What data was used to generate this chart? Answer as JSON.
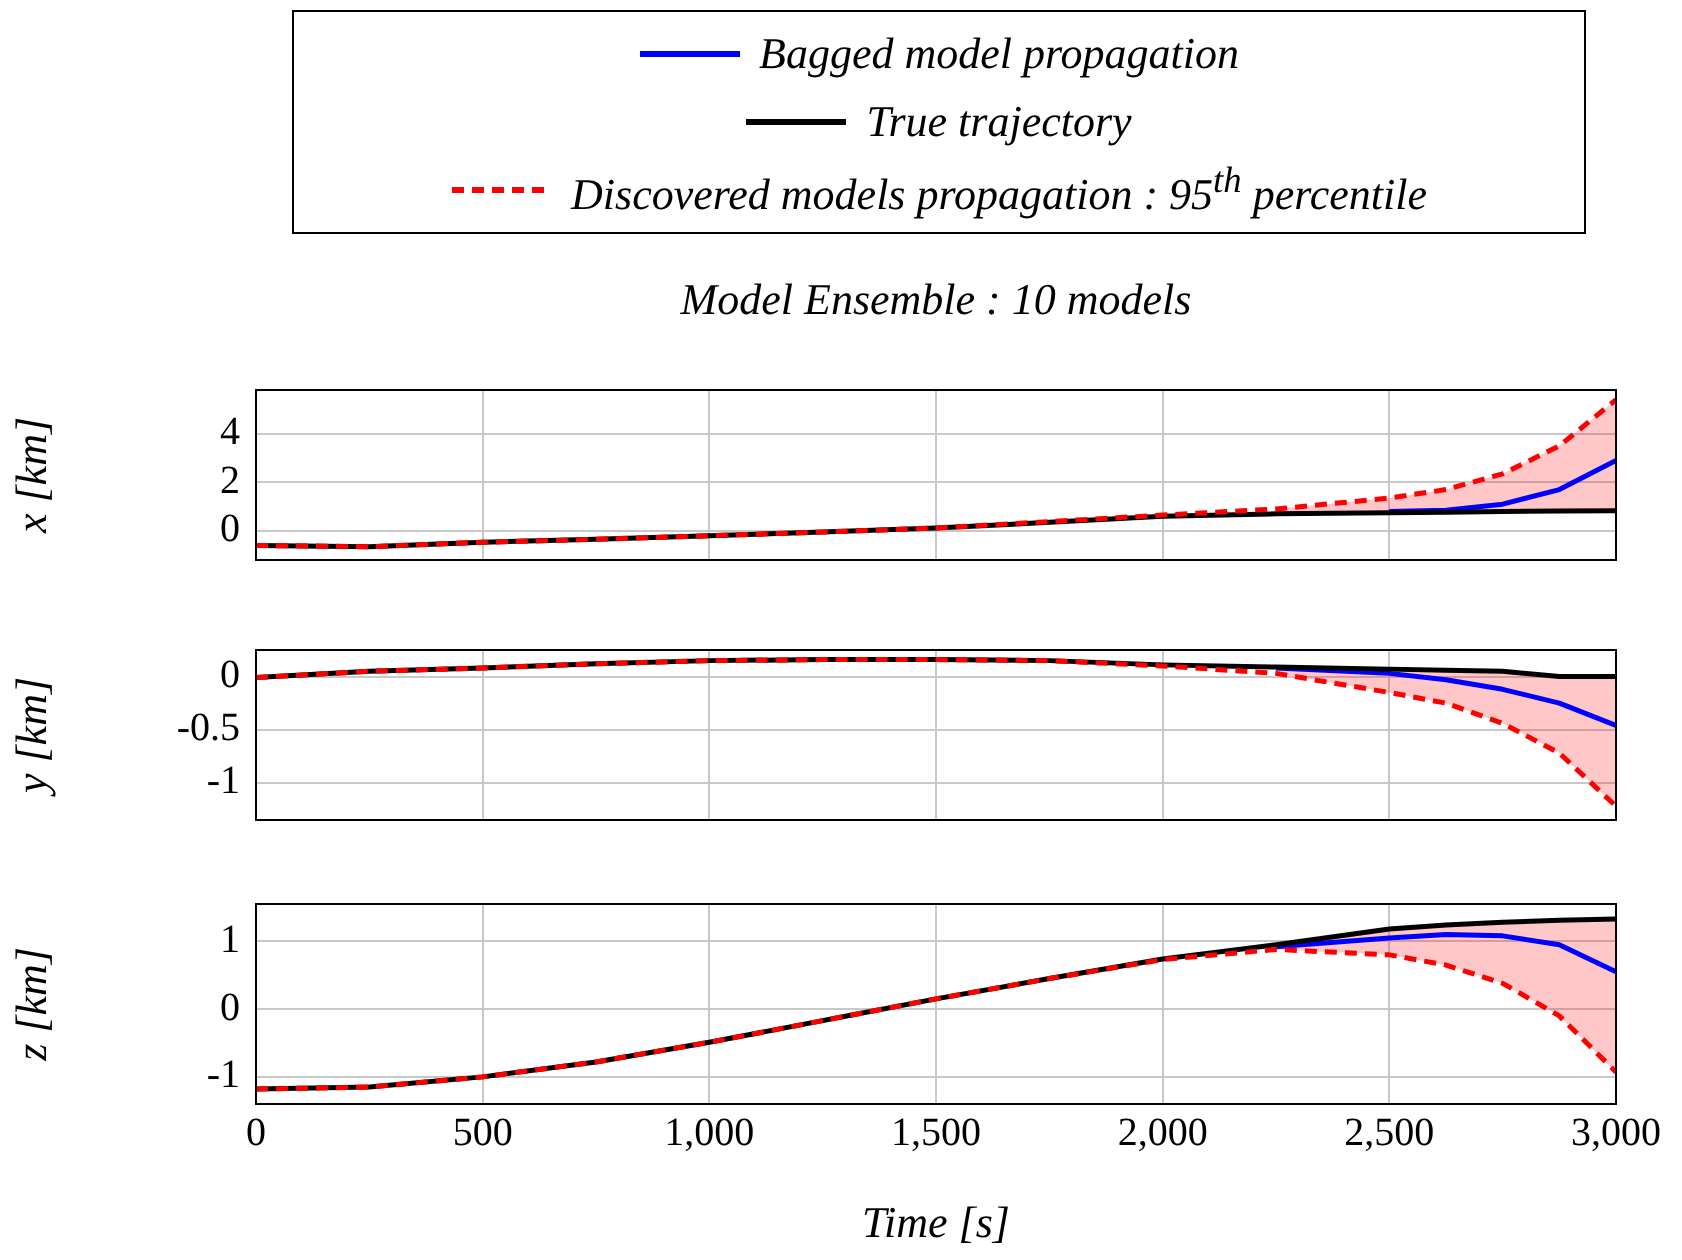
{
  "chart_data": [
    {
      "type": "line",
      "title": "Model Ensemble : 10 models",
      "ylabel": "x [km]",
      "x": [
        0,
        250,
        500,
        750,
        1000,
        1250,
        1500,
        1750,
        2000,
        2250,
        2500,
        2625,
        2750,
        2875,
        3000
      ],
      "series": [
        {
          "name": "Bagged model propagation",
          "color": "#0000ff",
          "line_style": "solid",
          "values": [
            null,
            null,
            null,
            null,
            null,
            null,
            null,
            null,
            null,
            null,
            0.8,
            0.85,
            1.1,
            1.7,
            2.9
          ]
        },
        {
          "name": "True trajectory",
          "color": "#000000",
          "line_style": "solid",
          "values": [
            -0.6,
            -0.65,
            -0.47,
            -0.35,
            -0.2,
            -0.05,
            0.12,
            0.35,
            0.6,
            0.7,
            0.75,
            0.77,
            0.8,
            0.82,
            0.83
          ]
        },
        {
          "name": "Discovered models propagation : 95$^{th}$ percentile",
          "color": "#ff0000",
          "line_style": "dashed",
          "values": [
            -0.6,
            -0.65,
            -0.47,
            -0.35,
            -0.2,
            -0.05,
            0.12,
            0.38,
            0.65,
            0.9,
            1.35,
            1.7,
            2.35,
            3.5,
            5.4
          ],
          "lower": [
            null,
            null,
            null,
            null,
            null,
            null,
            null,
            null,
            null,
            0.7,
            0.75,
            0.77,
            0.8,
            0.82,
            0.83
          ],
          "upper": [
            null,
            null,
            null,
            null,
            null,
            null,
            null,
            null,
            null,
            0.9,
            1.35,
            1.7,
            2.35,
            3.5,
            5.4
          ]
        }
      ],
      "xlim": [
        0,
        3000
      ],
      "xticks": [
        0,
        500,
        1000,
        1500,
        2000,
        2500,
        3000
      ],
      "ylim": [
        -1.2,
        5.8
      ],
      "yticks": [
        0,
        2,
        4
      ],
      "grid": true,
      "legend": "top",
      "marker": "none",
      "tick_labels": "y"
    },
    {
      "type": "line",
      "ylabel": "y [km]",
      "x": [
        0,
        250,
        500,
        750,
        1000,
        1250,
        1500,
        1750,
        2000,
        2250,
        2500,
        2625,
        2750,
        2875,
        3000
      ],
      "series": [
        {
          "color": "#0000ff",
          "line_style": "solid",
          "values": [
            null,
            null,
            null,
            null,
            null,
            null,
            null,
            null,
            null,
            0.08,
            0.03,
            -0.03,
            -0.12,
            -0.25,
            -0.46
          ]
        },
        {
          "color": "#000000",
          "line_style": "solid",
          "values": [
            -0.01,
            0.05,
            0.08,
            0.12,
            0.15,
            0.16,
            0.16,
            0.15,
            0.11,
            0.09,
            0.07,
            0.06,
            0.05,
            0.0,
            0.0
          ]
        },
        {
          "color": "#ff0000",
          "line_style": "dashed",
          "values": [
            -0.01,
            0.05,
            0.08,
            0.12,
            0.15,
            0.16,
            0.16,
            0.15,
            0.1,
            0.03,
            -0.15,
            -0.25,
            -0.44,
            -0.72,
            -1.22
          ],
          "lower": [
            null,
            null,
            null,
            null,
            null,
            null,
            null,
            null,
            null,
            0.03,
            -0.15,
            -0.25,
            -0.44,
            -0.72,
            -1.22
          ],
          "upper": [
            null,
            null,
            null,
            null,
            null,
            null,
            null,
            null,
            null,
            0.09,
            0.07,
            0.06,
            0.05,
            0.0,
            0.0
          ]
        }
      ],
      "xlim": [
        0,
        3000
      ],
      "xticks": [
        0,
        500,
        1000,
        1500,
        2000,
        2500,
        3000
      ],
      "ylim": [
        -1.35,
        0.25
      ],
      "yticks": [
        -1,
        -0.5,
        0
      ],
      "grid": true,
      "marker": "none",
      "tick_labels": "y"
    },
    {
      "type": "line",
      "xlabel": "Time [s]",
      "ylabel": "z [km]",
      "x": [
        0,
        250,
        500,
        750,
        1000,
        1250,
        1500,
        1750,
        2000,
        2250,
        2500,
        2625,
        2750,
        2875,
        3000
      ],
      "series": [
        {
          "color": "#0000ff",
          "line_style": "solid",
          "values": [
            null,
            null,
            null,
            null,
            null,
            null,
            null,
            null,
            null,
            0.92,
            1.05,
            1.1,
            1.08,
            0.95,
            0.55
          ]
        },
        {
          "color": "#000000",
          "line_style": "solid",
          "values": [
            -1.18,
            -1.15,
            -1.0,
            -0.78,
            -0.49,
            -0.17,
            0.15,
            0.45,
            0.74,
            0.95,
            1.18,
            1.24,
            1.28,
            1.31,
            1.33
          ]
        },
        {
          "color": "#ff0000",
          "line_style": "dashed",
          "values": [
            -1.18,
            -1.15,
            -1.0,
            -0.78,
            -0.49,
            -0.17,
            0.15,
            0.45,
            0.73,
            0.88,
            0.8,
            0.65,
            0.38,
            -0.1,
            -0.93
          ],
          "lower": [
            null,
            null,
            null,
            null,
            null,
            null,
            null,
            null,
            null,
            0.88,
            0.8,
            0.65,
            0.38,
            -0.1,
            -0.93
          ],
          "upper": [
            null,
            null,
            null,
            null,
            null,
            null,
            null,
            null,
            null,
            0.95,
            1.18,
            1.24,
            1.28,
            1.31,
            1.33
          ]
        }
      ],
      "xlim": [
        0,
        3000
      ],
      "xticks": [
        0,
        500,
        {
          "value": 1000,
          "label": "1,000"
        },
        {
          "value": 1500,
          "label": "1,500"
        },
        {
          "value": 2000,
          "label": "2,000"
        },
        {
          "value": 2500,
          "label": "2,500"
        },
        {
          "value": 3000,
          "label": "3,000"
        }
      ],
      "ylim": [
        -1.4,
        1.55
      ],
      "yticks": [
        -1,
        0,
        1
      ],
      "grid": true,
      "marker": "none"
    }
  ]
}
